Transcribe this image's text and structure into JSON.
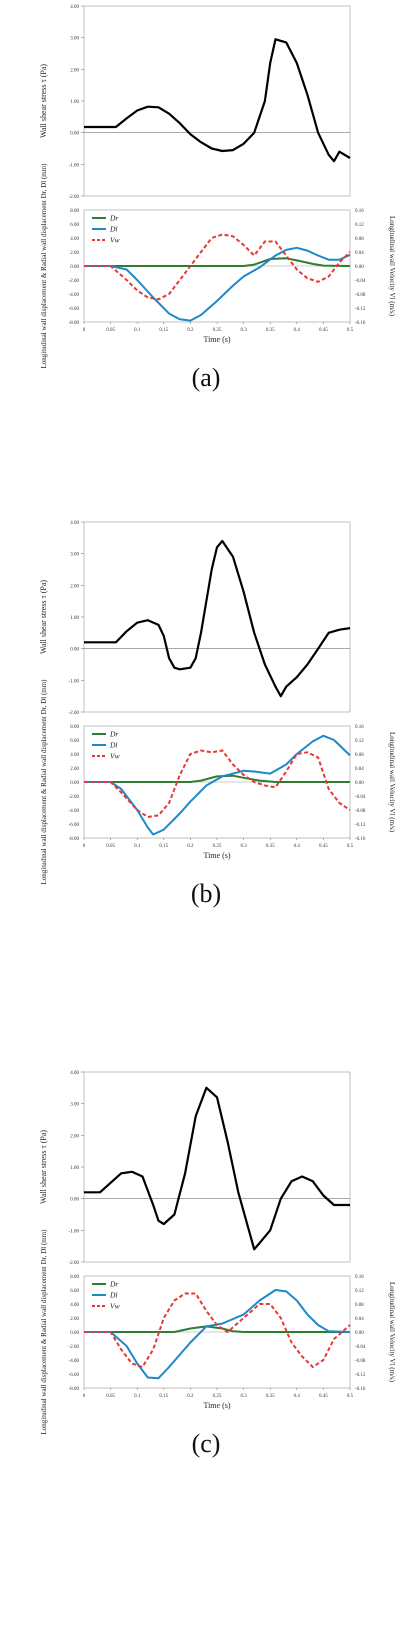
{
  "panels": [
    {
      "caption": "(a)",
      "wss": {
        "ylabel": "Wall shear stress τ (Pa)",
        "yticks": [
          "4.00",
          "3.00",
          "2.00",
          "1.00",
          "0.00",
          "-1.00",
          "-2.00"
        ],
        "ylim": [
          -2,
          4
        ],
        "t": [
          0,
          0.04,
          0.06,
          0.08,
          0.1,
          0.12,
          0.14,
          0.16,
          0.18,
          0.2,
          0.22,
          0.24,
          0.26,
          0.28,
          0.3,
          0.32,
          0.34,
          0.35,
          0.36,
          0.38,
          0.4,
          0.42,
          0.44,
          0.46,
          0.47,
          0.48,
          0.5
        ],
        "tau": [
          0.18,
          0.18,
          0.18,
          0.45,
          0.7,
          0.82,
          0.8,
          0.6,
          0.3,
          -0.05,
          -0.3,
          -0.5,
          -0.58,
          -0.55,
          -0.35,
          0.0,
          1.0,
          2.2,
          2.95,
          2.85,
          2.2,
          1.2,
          0.0,
          -0.7,
          -0.9,
          -0.6,
          -0.8
        ]
      },
      "disp": {
        "ylabel_left": "Longitudinal wall displacement & Radial wall displacement Dr, Dl (mm)",
        "ylabel_right": "Longitudinal wall Velocity Vl (m/s)",
        "xlabel": "Time (s)",
        "yticks_left": [
          "8.00",
          "6.00",
          "4.00",
          "2.00",
          "0.00",
          "-2.00",
          "-4.00",
          "-6.00",
          "-8.00"
        ],
        "yticks_right": [
          "0.16",
          "0.12",
          "0.08",
          "0.04",
          "0.00",
          "-0.04",
          "-0.08",
          "-0.12",
          "-0.16"
        ],
        "xticks": [
          "0",
          "0.05",
          "0.1",
          "0.15",
          "0.2",
          "0.25",
          "0.3",
          "0.35",
          "0.4",
          "0.45",
          "0.5"
        ],
        "ylim_left": [
          -8,
          8
        ],
        "ylim_right": [
          -0.16,
          0.16
        ],
        "series": [
          {
            "name": "Dr",
            "color": "#2e7d32",
            "axis": "left",
            "dash": false,
            "t": [
              0,
              0.1,
              0.2,
              0.3,
              0.32,
              0.35,
              0.38,
              0.4,
              0.43,
              0.45,
              0.5
            ],
            "v": [
              0,
              0,
              0,
              0,
              0.2,
              1.0,
              1.1,
              0.8,
              0.3,
              0.05,
              0
            ]
          },
          {
            "name": "Dl",
            "color": "#1e88c8",
            "axis": "left",
            "dash": false,
            "t": [
              0,
              0.05,
              0.08,
              0.1,
              0.13,
              0.16,
              0.18,
              0.2,
              0.22,
              0.25,
              0.28,
              0.3,
              0.33,
              0.36,
              0.38,
              0.4,
              0.42,
              0.44,
              0.46,
              0.48,
              0.5
            ],
            "v": [
              0,
              0,
              -0.5,
              -2.0,
              -4.5,
              -6.8,
              -7.6,
              -7.8,
              -7.0,
              -5.0,
              -2.8,
              -1.5,
              -0.2,
              1.5,
              2.3,
              2.6,
              2.2,
              1.5,
              0.9,
              0.9,
              1.6
            ]
          },
          {
            "name": "Vw",
            "color": "#e53935",
            "axis": "right",
            "dash": true,
            "t": [
              0,
              0.05,
              0.08,
              0.1,
              0.12,
              0.14,
              0.16,
              0.18,
              0.2,
              0.22,
              0.24,
              0.26,
              0.28,
              0.3,
              0.32,
              0.34,
              0.36,
              0.38,
              0.4,
              0.42,
              0.44,
              0.46,
              0.48,
              0.5
            ],
            "v": [
              0,
              0,
              -0.04,
              -0.07,
              -0.09,
              -0.095,
              -0.08,
              -0.04,
              0.0,
              0.04,
              0.08,
              0.09,
              0.085,
              0.06,
              0.03,
              0.07,
              0.07,
              0.03,
              -0.01,
              -0.035,
              -0.045,
              -0.03,
              0.01,
              0.04
            ]
          }
        ]
      }
    },
    {
      "caption": "(b)",
      "wss": {
        "ylabel": "Wall shear stress τ (Pa)",
        "yticks": [
          "4.00",
          "3.00",
          "2.00",
          "1.00",
          "0.00",
          "-1.00",
          "-2.00"
        ],
        "ylim": [
          -2,
          4
        ],
        "t": [
          0,
          0.04,
          0.06,
          0.08,
          0.1,
          0.12,
          0.14,
          0.15,
          0.16,
          0.17,
          0.18,
          0.2,
          0.21,
          0.22,
          0.24,
          0.25,
          0.26,
          0.28,
          0.3,
          0.32,
          0.34,
          0.36,
          0.37,
          0.38,
          0.4,
          0.42,
          0.44,
          0.46,
          0.48,
          0.5
        ],
        "tau": [
          0.2,
          0.2,
          0.2,
          0.55,
          0.82,
          0.9,
          0.75,
          0.4,
          -0.3,
          -0.6,
          -0.65,
          -0.6,
          -0.3,
          0.5,
          2.5,
          3.2,
          3.4,
          2.9,
          1.8,
          0.5,
          -0.5,
          -1.2,
          -1.5,
          -1.2,
          -0.9,
          -0.5,
          0.0,
          0.5,
          0.6,
          0.65
        ]
      },
      "disp": {
        "ylabel_left": "Longitudinal wall displacement & Radial wall displacement Dr, Dl (mm)",
        "ylabel_right": "Longitudinal wall Velocity Vl (m/s)",
        "xlabel": "Time (s)",
        "yticks_left": [
          "8.00",
          "6.00",
          "4.00",
          "2.00",
          "0.00",
          "-2.00",
          "-4.00",
          "-6.00",
          "-8.00"
        ],
        "yticks_right": [
          "0.16",
          "0.12",
          "0.08",
          "0.04",
          "0.00",
          "-0.04",
          "-0.08",
          "-0.12",
          "-0.16"
        ],
        "xticks": [
          "0",
          "0.05",
          "0.1",
          "0.15",
          "0.2",
          "0.25",
          "0.3",
          "0.35",
          "0.4",
          "0.45",
          "0.5"
        ],
        "ylim_left": [
          -8,
          8
        ],
        "ylim_right": [
          -0.16,
          0.16
        ],
        "series": [
          {
            "name": "Dr",
            "color": "#2e7d32",
            "axis": "left",
            "dash": false,
            "t": [
              0,
              0.1,
              0.2,
              0.22,
              0.25,
              0.28,
              0.3,
              0.33,
              0.36,
              0.5
            ],
            "v": [
              0,
              0,
              0,
              0.2,
              0.8,
              0.9,
              0.6,
              0.2,
              0,
              0
            ]
          },
          {
            "name": "Dl",
            "color": "#1e88c8",
            "axis": "left",
            "dash": false,
            "t": [
              0,
              0.05,
              0.07,
              0.1,
              0.12,
              0.13,
              0.15,
              0.18,
              0.2,
              0.23,
              0.26,
              0.3,
              0.32,
              0.35,
              0.38,
              0.4,
              0.43,
              0.45,
              0.47,
              0.5
            ],
            "v": [
              0,
              0,
              -1.0,
              -4.0,
              -6.5,
              -7.5,
              -6.8,
              -4.5,
              -2.8,
              -0.5,
              0.8,
              1.6,
              1.5,
              1.2,
              2.5,
              4.0,
              5.8,
              6.6,
              6.0,
              3.8
            ]
          },
          {
            "name": "Vw",
            "color": "#e53935",
            "axis": "right",
            "dash": true,
            "t": [
              0,
              0.05,
              0.07,
              0.1,
              0.12,
              0.14,
              0.16,
              0.18,
              0.2,
              0.22,
              0.24,
              0.26,
              0.28,
              0.3,
              0.32,
              0.34,
              0.36,
              0.38,
              0.4,
              0.42,
              0.44,
              0.46,
              0.48,
              0.5
            ],
            "v": [
              0,
              0,
              -0.03,
              -0.08,
              -0.1,
              -0.095,
              -0.06,
              0.02,
              0.08,
              0.09,
              0.085,
              0.09,
              0.05,
              0.02,
              0.0,
              -0.01,
              -0.015,
              0.03,
              0.08,
              0.085,
              0.07,
              -0.02,
              -0.06,
              -0.08
            ]
          }
        ]
      }
    },
    {
      "caption": "(c)",
      "wss": {
        "ylabel": "Wall shear stress τ (Pa)",
        "yticks": [
          "4.00",
          "3.00",
          "2.00",
          "1.00",
          "0.00",
          "-1.00",
          "-2.00"
        ],
        "ylim": [
          -2,
          4
        ],
        "t": [
          0,
          0.03,
          0.05,
          0.07,
          0.09,
          0.11,
          0.13,
          0.14,
          0.15,
          0.17,
          0.19,
          0.21,
          0.23,
          0.25,
          0.27,
          0.29,
          0.31,
          0.32,
          0.33,
          0.35,
          0.37,
          0.39,
          0.41,
          0.43,
          0.45,
          0.47,
          0.5
        ],
        "tau": [
          0.2,
          0.2,
          0.5,
          0.8,
          0.85,
          0.7,
          -0.2,
          -0.7,
          -0.8,
          -0.5,
          0.8,
          2.6,
          3.5,
          3.2,
          1.8,
          0.2,
          -1.0,
          -1.6,
          -1.4,
          -1.0,
          0.0,
          0.55,
          0.7,
          0.55,
          0.1,
          -0.2,
          -0.2
        ]
      },
      "disp": {
        "ylabel_left": "Longitudinal wall displacement & Radial wall displacement Dr, Dl (mm)",
        "ylabel_right": "Longitudinal wall Velocity Vl (m/s)",
        "xlabel": "Time (s)",
        "yticks_left": [
          "8.00",
          "6.00",
          "4.00",
          "2.00",
          "0.00",
          "-2.00",
          "-4.00",
          "-6.00",
          "-8.00"
        ],
        "yticks_right": [
          "0.16",
          "0.12",
          "0.08",
          "0.04",
          "0.00",
          "-0.04",
          "-0.08",
          "-0.12",
          "-0.16"
        ],
        "xticks": [
          "0",
          "0.05",
          "0.1",
          "0.15",
          "0.2",
          "0.25",
          "0.3",
          "0.35",
          "0.4",
          "0.45",
          "0.5"
        ],
        "ylim_left": [
          -8,
          8
        ],
        "ylim_right": [
          -0.16,
          0.16
        ],
        "series": [
          {
            "name": "Dr",
            "color": "#2e7d32",
            "axis": "left",
            "dash": false,
            "t": [
              0,
              0.1,
              0.17,
              0.2,
              0.23,
              0.26,
              0.28,
              0.3,
              0.5
            ],
            "v": [
              0,
              0,
              0,
              0.5,
              0.8,
              0.5,
              0.1,
              0,
              0
            ]
          },
          {
            "name": "Dl",
            "color": "#1e88c8",
            "axis": "left",
            "dash": false,
            "t": [
              0,
              0.05,
              0.08,
              0.1,
              0.12,
              0.14,
              0.16,
              0.2,
              0.23,
              0.26,
              0.3,
              0.33,
              0.36,
              0.38,
              0.4,
              0.42,
              0.44,
              0.46,
              0.5
            ],
            "v": [
              0,
              0,
              -2.0,
              -4.5,
              -6.5,
              -6.6,
              -5.0,
              -1.5,
              0.8,
              1.2,
              2.5,
              4.5,
              6.0,
              5.8,
              4.5,
              2.5,
              1.0,
              0.1,
              0
            ]
          },
          {
            "name": "Vw",
            "color": "#e53935",
            "axis": "right",
            "dash": true,
            "t": [
              0,
              0.05,
              0.07,
              0.09,
              0.11,
              0.13,
              0.15,
              0.17,
              0.19,
              0.21,
              0.23,
              0.25,
              0.27,
              0.3,
              0.33,
              0.35,
              0.37,
              0.39,
              0.41,
              0.43,
              0.45,
              0.47,
              0.5
            ],
            "v": [
              0,
              0,
              -0.05,
              -0.09,
              -0.1,
              -0.05,
              0.04,
              0.09,
              0.11,
              0.11,
              0.06,
              0.02,
              0.0,
              0.04,
              0.08,
              0.08,
              0.04,
              -0.03,
              -0.07,
              -0.1,
              -0.08,
              -0.02,
              0.02
            ]
          }
        ]
      }
    }
  ]
}
